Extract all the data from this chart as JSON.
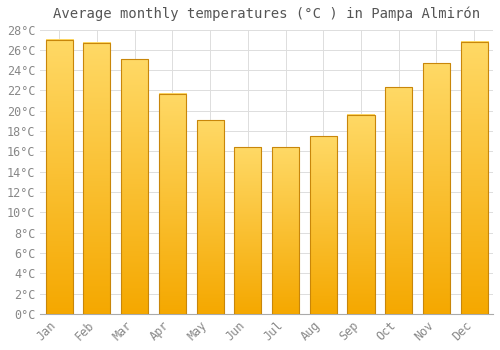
{
  "title": "Average monthly temperatures (°C ) in Pampa Almirón",
  "months": [
    "Jan",
    "Feb",
    "Mar",
    "Apr",
    "May",
    "Jun",
    "Jul",
    "Aug",
    "Sep",
    "Oct",
    "Nov",
    "Dec"
  ],
  "values": [
    27.0,
    26.7,
    25.1,
    21.7,
    19.1,
    16.4,
    16.4,
    17.5,
    19.6,
    22.3,
    24.7,
    26.8
  ],
  "bar_color_bottom": "#F5A800",
  "bar_color_top": "#FFD966",
  "bar_edge_color": "#C8860A",
  "ylim": [
    0,
    28
  ],
  "ytick_max": 28,
  "ytick_step": 2,
  "background_color": "#ffffff",
  "grid_color": "#dddddd",
  "title_fontsize": 10,
  "tick_fontsize": 8.5,
  "tick_color": "#888888",
  "title_color": "#555555",
  "bar_width": 0.72
}
